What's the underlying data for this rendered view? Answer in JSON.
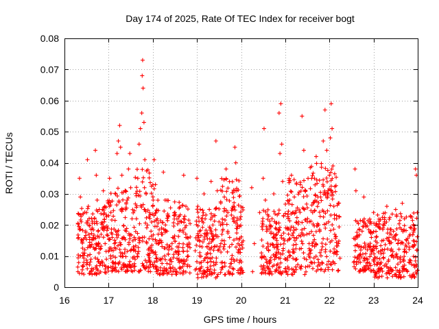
{
  "chart_data": {
    "type": "scatter",
    "title": "Day 174 of 2025, Rate Of TEC Index for receiver bogt",
    "xlabel": "GPS time / hours",
    "ylabel": "ROTI / TECUs",
    "xlim": [
      16,
      24
    ],
    "ylim": [
      0,
      0.08
    ],
    "grid": true,
    "marker": "+",
    "marker_color": "#ff0000",
    "x_ticks": [
      16,
      17,
      18,
      19,
      20,
      21,
      22,
      23,
      24
    ],
    "x_tick_labels": [
      "16",
      "17",
      "18",
      "19",
      "20",
      "21",
      "22",
      "23",
      "24"
    ],
    "y_ticks": [
      0,
      0.01,
      0.02,
      0.03,
      0.04,
      0.05,
      0.06,
      0.07,
      0.08
    ],
    "y_tick_labels": [
      "0",
      "0.01",
      "0.02",
      "0.03",
      "0.04",
      "0.05",
      "0.06",
      "0.07",
      "0.08"
    ],
    "series": [
      {
        "name": "ROTI",
        "points": [
          [
            16.34,
            0.035
          ],
          [
            16.36,
            0.029
          ],
          [
            16.38,
            0.021
          ],
          [
            16.4,
            0.015
          ],
          [
            16.42,
            0.011
          ],
          [
            16.44,
            0.008
          ],
          [
            16.46,
            0.012
          ],
          [
            16.48,
            0.018
          ],
          [
            16.5,
            0.024
          ],
          [
            16.52,
            0.041
          ],
          [
            16.54,
            0.026
          ],
          [
            16.56,
            0.02
          ],
          [
            16.58,
            0.013
          ],
          [
            16.6,
            0.009
          ],
          [
            16.62,
            0.006
          ],
          [
            16.65,
            0.016
          ],
          [
            16.68,
            0.022
          ],
          [
            16.7,
            0.044
          ],
          [
            16.72,
            0.036
          ],
          [
            16.74,
            0.028
          ],
          [
            16.76,
            0.018
          ],
          [
            16.78,
            0.011
          ],
          [
            16.8,
            0.007
          ],
          [
            16.83,
            0.017
          ],
          [
            16.86,
            0.025
          ],
          [
            16.88,
            0.031
          ],
          [
            16.9,
            0.021
          ],
          [
            16.92,
            0.014
          ],
          [
            16.95,
            0.009
          ],
          [
            16.98,
            0.019
          ],
          [
            17.0,
            0.027
          ],
          [
            17.02,
            0.035
          ],
          [
            17.05,
            0.024
          ],
          [
            17.08,
            0.016
          ],
          [
            17.1,
            0.01
          ],
          [
            17.13,
            0.014
          ],
          [
            17.16,
            0.03
          ],
          [
            17.19,
            0.043
          ],
          [
            17.22,
            0.047
          ],
          [
            17.25,
            0.052
          ],
          [
            17.27,
            0.045
          ],
          [
            17.3,
            0.036
          ],
          [
            17.32,
            0.025
          ],
          [
            17.34,
            0.016
          ],
          [
            17.36,
            0.011
          ],
          [
            17.38,
            0.007
          ],
          [
            17.4,
            0.018
          ],
          [
            17.42,
            0.028
          ],
          [
            17.45,
            0.038
          ],
          [
            17.48,
            0.043
          ],
          [
            17.5,
            0.032
          ],
          [
            17.53,
            0.022
          ],
          [
            17.56,
            0.013
          ],
          [
            17.6,
            0.009
          ],
          [
            17.63,
            0.022
          ],
          [
            17.66,
            0.035
          ],
          [
            17.69,
            0.046
          ],
          [
            17.72,
            0.051
          ],
          [
            17.75,
            0.056
          ],
          [
            17.76,
            0.068
          ],
          [
            17.77,
            0.073
          ],
          [
            17.78,
            0.064
          ],
          [
            17.8,
            0.053
          ],
          [
            17.82,
            0.041
          ],
          [
            17.85,
            0.03
          ],
          [
            17.88,
            0.02
          ],
          [
            17.9,
            0.012
          ],
          [
            17.93,
            0.008
          ],
          [
            17.96,
            0.018
          ],
          [
            18.0,
            0.026
          ],
          [
            18.03,
            0.041
          ],
          [
            18.06,
            0.033
          ],
          [
            18.1,
            0.022
          ],
          [
            18.13,
            0.014
          ],
          [
            18.16,
            0.009
          ],
          [
            18.2,
            0.019
          ],
          [
            18.24,
            0.037
          ],
          [
            18.28,
            0.028
          ],
          [
            18.32,
            0.018
          ],
          [
            18.36,
            0.012
          ],
          [
            18.4,
            0.006
          ],
          [
            18.45,
            0.016
          ],
          [
            18.5,
            0.024
          ],
          [
            18.55,
            0.013
          ],
          [
            18.6,
            0.008
          ],
          [
            18.65,
            0.021
          ],
          [
            18.7,
            0.036
          ],
          [
            18.75,
            0.016
          ],
          [
            18.8,
            0.01
          ],
          [
            19.0,
            0.035
          ],
          [
            19.02,
            0.026
          ],
          [
            19.04,
            0.016
          ],
          [
            19.06,
            0.01
          ],
          [
            19.08,
            0.006
          ],
          [
            19.12,
            0.022
          ],
          [
            19.16,
            0.03
          ],
          [
            19.2,
            0.017
          ],
          [
            19.24,
            0.011
          ],
          [
            19.28,
            0.025
          ],
          [
            19.32,
            0.034
          ],
          [
            19.36,
            0.02
          ],
          [
            19.4,
            0.013
          ],
          [
            19.43,
            0.047
          ],
          [
            19.46,
            0.031
          ],
          [
            19.5,
            0.021
          ],
          [
            19.54,
            0.014
          ],
          [
            19.58,
            0.008
          ],
          [
            19.62,
            0.029
          ],
          [
            19.66,
            0.038
          ],
          [
            19.7,
            0.024
          ],
          [
            19.74,
            0.016
          ],
          [
            19.78,
            0.009
          ],
          [
            19.82,
            0.026
          ],
          [
            19.86,
            0.045
          ],
          [
            19.88,
            0.04
          ],
          [
            19.9,
            0.031
          ],
          [
            19.92,
            0.02
          ],
          [
            19.94,
            0.012
          ],
          [
            19.96,
            0.008
          ],
          [
            20.24,
            0.032
          ],
          [
            20.26,
            0.005
          ],
          [
            20.3,
            0.014
          ],
          [
            20.42,
            0.024
          ],
          [
            20.46,
            0.011
          ],
          [
            20.5,
            0.035
          ],
          [
            20.52,
            0.051
          ],
          [
            20.55,
            0.028
          ],
          [
            20.58,
            0.018
          ],
          [
            20.62,
            0.012
          ],
          [
            20.66,
            0.008
          ],
          [
            20.7,
            0.022
          ],
          [
            20.74,
            0.03
          ],
          [
            20.78,
            0.019
          ],
          [
            20.82,
            0.013
          ],
          [
            20.86,
            0.056
          ],
          [
            20.88,
            0.043
          ],
          [
            20.9,
            0.059
          ],
          [
            20.92,
            0.046
          ],
          [
            20.94,
            0.034
          ],
          [
            20.96,
            0.023
          ],
          [
            20.98,
            0.015
          ],
          [
            21.0,
            0.009
          ],
          [
            21.05,
            0.019
          ],
          [
            21.1,
            0.028
          ],
          [
            21.14,
            0.036
          ],
          [
            21.18,
            0.024
          ],
          [
            21.22,
            0.015
          ],
          [
            21.26,
            0.009
          ],
          [
            21.3,
            0.021
          ],
          [
            21.34,
            0.033
          ],
          [
            21.38,
            0.055
          ],
          [
            21.42,
            0.044
          ],
          [
            21.46,
            0.031
          ],
          [
            21.5,
            0.021
          ],
          [
            21.54,
            0.014
          ],
          [
            21.58,
            0.008
          ],
          [
            21.62,
            0.024
          ],
          [
            21.66,
            0.035
          ],
          [
            21.7,
            0.042
          ],
          [
            21.74,
            0.029
          ],
          [
            21.78,
            0.018
          ],
          [
            21.82,
            0.012
          ],
          [
            21.86,
            0.047
          ],
          [
            21.9,
            0.057
          ],
          [
            21.94,
            0.044
          ],
          [
            21.97,
            0.03
          ],
          [
            22.0,
            0.036
          ],
          [
            22.02,
            0.048
          ],
          [
            22.04,
            0.059
          ],
          [
            22.06,
            0.051
          ],
          [
            22.08,
            0.039
          ],
          [
            22.1,
            0.026
          ],
          [
            22.12,
            0.017
          ],
          [
            22.14,
            0.011
          ],
          [
            22.16,
            0.022
          ],
          [
            22.2,
            0.014
          ],
          [
            22.58,
            0.038
          ],
          [
            22.6,
            0.031
          ],
          [
            22.63,
            0.021
          ],
          [
            22.66,
            0.013
          ],
          [
            22.7,
            0.008
          ],
          [
            22.74,
            0.018
          ],
          [
            22.78,
            0.029
          ],
          [
            22.82,
            0.02
          ],
          [
            22.86,
            0.012
          ],
          [
            22.9,
            0.007
          ],
          [
            22.95,
            0.016
          ],
          [
            23.0,
            0.024
          ],
          [
            23.05,
            0.013
          ],
          [
            23.1,
            0.008
          ],
          [
            23.15,
            0.019
          ],
          [
            23.2,
            0.012
          ],
          [
            23.25,
            0.021
          ],
          [
            23.3,
            0.026
          ],
          [
            23.35,
            0.016
          ],
          [
            23.4,
            0.01
          ],
          [
            23.45,
            0.018
          ],
          [
            23.5,
            0.025
          ],
          [
            23.55,
            0.014
          ],
          [
            23.6,
            0.009
          ],
          [
            23.65,
            0.027
          ],
          [
            23.7,
            0.022
          ],
          [
            23.75,
            0.015
          ],
          [
            23.8,
            0.008
          ],
          [
            23.85,
            0.019
          ],
          [
            23.9,
            0.013
          ],
          [
            23.95,
            0.038
          ],
          [
            23.97,
            0.036
          ],
          [
            23.99,
            0.024
          ]
        ],
        "dense_bands": [
          {
            "x": [
              16.3,
              16.95
            ],
            "y_min": 0.004,
            "y_max": 0.026
          },
          {
            "x": [
              16.95,
              17.6
            ],
            "y_min": 0.005,
            "y_max": 0.032
          },
          {
            "x": [
              17.6,
              18.05
            ],
            "y_min": 0.005,
            "y_max": 0.038
          },
          {
            "x": [
              18.05,
              18.85
            ],
            "y_min": 0.004,
            "y_max": 0.028
          },
          {
            "x": [
              18.95,
              19.5
            ],
            "y_min": 0.003,
            "y_max": 0.026
          },
          {
            "x": [
              19.5,
              20.05
            ],
            "y_min": 0.004,
            "y_max": 0.035
          },
          {
            "x": [
              20.45,
              21.0
            ],
            "y_min": 0.004,
            "y_max": 0.025
          },
          {
            "x": [
              21.0,
              21.55
            ],
            "y_min": 0.004,
            "y_max": 0.035
          },
          {
            "x": [
              21.55,
              22.25
            ],
            "y_min": 0.005,
            "y_max": 0.04
          },
          {
            "x": [
              22.55,
              23.0
            ],
            "y_min": 0.005,
            "y_max": 0.022
          },
          {
            "x": [
              23.0,
              24.0
            ],
            "y_min": 0.003,
            "y_max": 0.024
          }
        ]
      }
    ]
  }
}
